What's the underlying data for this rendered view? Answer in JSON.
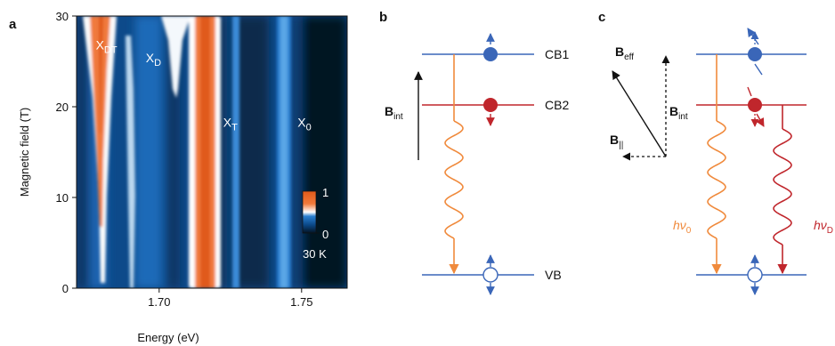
{
  "panels": {
    "a": {
      "panel_label": "a",
      "chart_data": {
        "type": "heatmap",
        "xlabel": "Energy (eV)",
        "ylabel": "Magnetic field (T)",
        "xlim": [
          1.671,
          1.766
        ],
        "ylim": [
          0,
          30
        ],
        "x_ticks": [
          {
            "v": 1.7,
            "label": "1.70"
          },
          {
            "v": 1.75,
            "label": "1.75"
          }
        ],
        "y_ticks": [
          {
            "v": 0,
            "label": "0"
          },
          {
            "v": 10,
            "label": "10"
          },
          {
            "v": 20,
            "label": "20"
          },
          {
            "v": 30,
            "label": "30"
          }
        ],
        "colorbar": {
          "max_label": "1",
          "min_label": "0",
          "min": 0,
          "max": 1,
          "colors": [
            "#041424",
            "#0b4a8a",
            "#2a7fd0",
            "#ffffff",
            "#f07a3c",
            "#e05a1a"
          ]
        },
        "temperature_label": "30 K",
        "peaks": [
          {
            "name": "X",
            "subscript": "DT",
            "label_at": {
              "energy": 1.6815,
              "field": 26.3
            }
          },
          {
            "name": "X",
            "subscript": "D",
            "label_at": {
              "energy": 1.698,
              "field": 24.9
            }
          },
          {
            "name": "X",
            "subscript": "T",
            "label_at": {
              "energy": 1.725,
              "field": 17.8
            }
          },
          {
            "name": "X",
            "subscript": "0",
            "label_at": {
              "energy": 1.751,
              "field": 17.8
            }
          }
        ]
      }
    },
    "b": {
      "panel_label": "b",
      "levels": {
        "cb1": "CB1",
        "cb2": "CB2",
        "vb": "VB"
      },
      "field": {
        "symbol": "B",
        "subscript": "int"
      }
    },
    "c": {
      "panel_label": "c",
      "vectors": {
        "eff": {
          "symbol": "B",
          "subscript": "eff"
        },
        "int": {
          "symbol": "B",
          "subscript": "int"
        },
        "par": {
          "symbol": "B",
          "subscript": "||"
        }
      },
      "photons": {
        "bright": {
          "text": "hν",
          "subscript": "0"
        },
        "dark": {
          "text": "hν",
          "subscript": "D"
        }
      }
    }
  },
  "colors": {
    "blue": "#3a66b8",
    "red": "#c0262c",
    "orange": "#f08a3c"
  }
}
